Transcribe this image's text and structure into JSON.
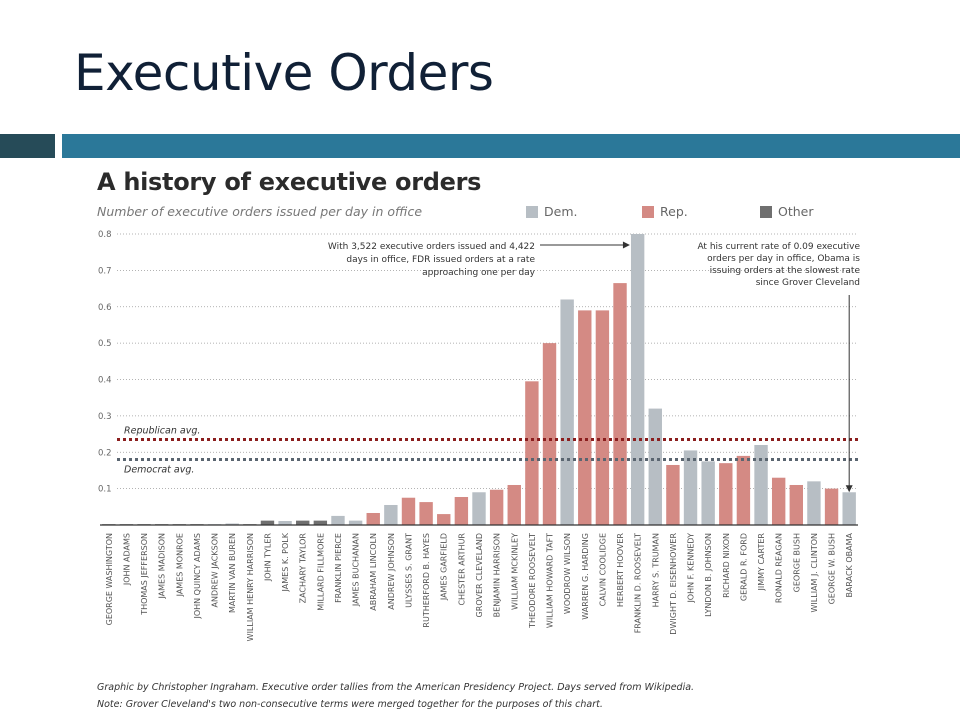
{
  "slide": {
    "title": "Executive Orders",
    "accent_dark": "#264b58",
    "accent_blue": "#2b7899"
  },
  "chart_data": {
    "type": "bar",
    "title": "A history of executive orders",
    "subtitle": "Number of executive orders issued per day in office",
    "xlabel": "",
    "ylabel": "Number of executive orders issued per day in office",
    "ylim": [
      0,
      0.8
    ],
    "yticks": [
      "0.1",
      "0.2",
      "0.3",
      "0.4",
      "0.5",
      "0.6",
      "0.7",
      "0.8"
    ],
    "ytick_values": [
      0.1,
      0.2,
      0.3,
      0.4,
      0.5,
      0.6,
      0.7,
      0.8
    ],
    "grid": true,
    "legend_position": "top-right",
    "legend": [
      {
        "key": "dem",
        "label": "Dem.",
        "color": "#b7bec4"
      },
      {
        "key": "rep",
        "label": "Rep.",
        "color": "#d48a84"
      },
      {
        "key": "other",
        "label": "Other",
        "color": "#6f6f6f"
      }
    ],
    "colors": {
      "dem": "#b7bec4",
      "rep": "#d48a84",
      "other": "#6f6f6f"
    },
    "categories": [
      "GEORGE WASHINGTON",
      "JOHN ADAMS",
      "THOMAS JEFFERSON",
      "JAMES MADISON",
      "JAMES MONROE",
      "JOHN QUINCY ADAMS",
      "ANDREW JACKSON",
      "MARTIN VAN BUREN",
      "WILLIAM HENRY HARRISON",
      "JOHN TYLER",
      "JAMES K. POLK",
      "ZACHARY TAYLOR",
      "MILLARD FILLMORE",
      "FRANKLIN PIERCE",
      "JAMES BUCHANAN",
      "ABRAHAM LINCOLN",
      "ANDREW JOHNSON",
      "ULYSSES S. GRANT",
      "RUTHERFORD B. HAYES",
      "JAMES GARFIELD",
      "CHESTER ARTHUR",
      "GROVER CLEVELAND",
      "BENJAMIN HARRISON",
      "WILLIAM MCKINLEY",
      "THEODORE ROOSEVELT",
      "WILLIAM HOWARD TAFT",
      "WOODROW WILSON",
      "WARREN G. HARDING",
      "CALVIN COOLIDGE",
      "HERBERT HOOVER",
      "FRANKLIN D. ROOSEVELT",
      "HARRY S. TRUMAN",
      "DWIGHT D. EISENHOWER",
      "JOHN F. KENNEDY",
      "LYNDON B. JOHNSON",
      "RICHARD NIXON",
      "GERALD R. FORD",
      "JIMMY CARTER",
      "RONALD REAGAN",
      "GEORGE BUSH",
      "WILLIAM J. CLINTON",
      "GEORGE W. BUSH",
      "BARACK OBAMA"
    ],
    "values": [
      0.002,
      0.001,
      0.002,
      0.0,
      0.0,
      0.001,
      0.002,
      0.004,
      0.0,
      0.012,
      0.011,
      0.012,
      0.012,
      0.025,
      0.012,
      0.033,
      0.055,
      0.075,
      0.063,
      0.03,
      0.077,
      0.09,
      0.097,
      0.11,
      0.395,
      0.5,
      0.62,
      0.59,
      0.59,
      0.665,
      0.8,
      0.32,
      0.165,
      0.205,
      0.175,
      0.17,
      0.19,
      0.22,
      0.13,
      0.11,
      0.12,
      0.1,
      0.09
    ],
    "party": [
      "other",
      "other",
      "other",
      "other",
      "other",
      "other",
      "dem",
      "dem",
      "other",
      "other",
      "dem",
      "other",
      "other",
      "dem",
      "dem",
      "rep",
      "dem",
      "rep",
      "rep",
      "rep",
      "rep",
      "dem",
      "rep",
      "rep",
      "rep",
      "rep",
      "dem",
      "rep",
      "rep",
      "rep",
      "dem",
      "dem",
      "rep",
      "dem",
      "dem",
      "rep",
      "rep",
      "dem",
      "rep",
      "rep",
      "dem",
      "rep",
      "dem"
    ],
    "reference_lines": [
      {
        "label": "Republican avg.",
        "value": 0.235,
        "color": "#8b1e1e"
      },
      {
        "label": "Democrat avg.",
        "value": 0.18,
        "color": "#5a6570"
      }
    ],
    "annotations": [
      {
        "target": "FRANKLIN D. ROOSEVELT",
        "lines": [
          "With 3,522 executive orders issued and 4,422",
          "days in office, FDR issued orders at a rate",
          "approaching one per day"
        ]
      },
      {
        "target": "BARACK OBAMA",
        "lines": [
          "At his current rate of 0.09 executive",
          "orders per day in office, Obama is",
          "issuing orders at the slowest rate",
          "since Grover Cleveland"
        ]
      }
    ],
    "footnotes": [
      "Graphic by Christopher Ingraham. Executive order tallies from the American Presidency Project. Days served from Wikipedia.",
      "Note: Grover Cleveland's two non-consecutive terms were merged together for the purposes of this chart."
    ]
  }
}
